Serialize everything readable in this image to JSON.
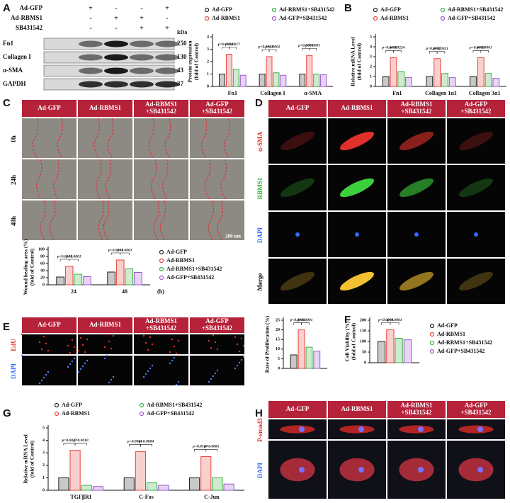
{
  "figure": {
    "letters": [
      "A",
      "B",
      "C",
      "D",
      "E",
      "F",
      "G",
      "H"
    ],
    "blot": {
      "conditions": [
        {
          "name": "Ad-GFP",
          "signs": [
            "+",
            "-",
            "-",
            "+"
          ]
        },
        {
          "name": "Ad-RBMS1",
          "signs": [
            "-",
            "+",
            "+",
            "-"
          ]
        },
        {
          "name": "SB431542",
          "signs": [
            "-",
            "-",
            "+",
            "+"
          ]
        }
      ],
      "unit": "kDa",
      "bands": [
        {
          "name": "Fn1",
          "kda": 250
        },
        {
          "name": "Collagen I",
          "kda": 130
        },
        {
          "name": "α-SMA",
          "kda": 43
        },
        {
          "name": "GAPDH",
          "kda": 37
        }
      ]
    },
    "headers": [
      [
        "Ad-GFP"
      ],
      [
        "Ad-RBMS1"
      ],
      [
        "Ad-RBMS1",
        "+SB431542"
      ],
      [
        "Ad-GFP",
        "+SB431542"
      ]
    ],
    "C": {
      "rows": [
        "0h",
        "24h",
        "48h"
      ],
      "scale": "200 um"
    },
    "D": {
      "rows": [
        "α-SMA",
        "RBMS1",
        "DAPI",
        "Merge"
      ]
    },
    "E": {
      "rows": [
        "EdU",
        "DAPI"
      ]
    },
    "H": {
      "rows": [
        "P-smad3",
        "DAPI"
      ]
    }
  },
  "chart_data": [
    {
      "type": "bar",
      "ylabel": [
        "Protein expression",
        "(fold of Control)"
      ],
      "categories": [
        "Fn1",
        "Collagen I",
        "α-SMA"
      ],
      "series": [
        {
          "name": "Ad-GFP",
          "color": "#222222",
          "values": [
            1,
            1,
            1
          ]
        },
        {
          "name": "Ad-RBMS1",
          "color": "#e8453c",
          "values": [
            2.6,
            2.4,
            2.5
          ]
        },
        {
          "name": "Ad-RBMS1+SB431542",
          "color": "#3cb043",
          "values": [
            1.4,
            1.1,
            1.0
          ]
        },
        {
          "name": "Ad-GFP+SB431542",
          "color": "#9b59d0",
          "values": [
            0.9,
            0.9,
            0.95
          ]
        }
      ],
      "ylim": [
        0,
        4
      ],
      "yticks": [
        0,
        1,
        2,
        3,
        4
      ],
      "annotations": [
        [
          "p=0.0004",
          "p=0.0017"
        ],
        [
          "p<0.0001",
          "p=0.0002"
        ],
        [
          "p<0.0001",
          "p<0.0001"
        ]
      ]
    },
    {
      "type": "bar",
      "ylabel": [
        "Relative mRNA Level",
        "(fold of Control)"
      ],
      "categories": [
        "Fn1",
        "Collagen 1α1",
        "Collagen 3α1"
      ],
      "series": [
        {
          "name": "Ad-GFP",
          "color": "#222222",
          "values": [
            1,
            1,
            1
          ]
        },
        {
          "name": "Ad-RBMS1",
          "color": "#e8453c",
          "values": [
            2.9,
            2.8,
            2.9
          ]
        },
        {
          "name": "Ad-RBMS1+SB431542",
          "color": "#3cb043",
          "values": [
            1.5,
            1.3,
            1.3
          ]
        },
        {
          "name": "Ad-GFP+SB431542",
          "color": "#9b59d0",
          "values": [
            0.9,
            0.9,
            0.8
          ]
        }
      ],
      "ylim": [
        0,
        5
      ],
      "yticks": [
        0,
        1,
        2,
        3,
        4,
        5
      ],
      "annotations": [
        [
          "p=0.0088",
          "p=0.0224"
        ],
        [
          "p=0.0007",
          "p=0.0021"
        ],
        [
          "p=0.0003",
          "p<0.0001"
        ]
      ]
    },
    {
      "type": "bar",
      "ylabel": [
        "Wound healing area (%)",
        "(fold of Control)"
      ],
      "categories": [
        "24",
        "48"
      ],
      "xlabel": "(h)",
      "series": [
        {
          "name": "Ad-GFP",
          "color": "#222222",
          "values": [
            22,
            36
          ]
        },
        {
          "name": "Ad-RBMS1",
          "color": "#e8453c",
          "values": [
            52,
            70
          ]
        },
        {
          "name": "Ad-RBMS1+SB431542",
          "color": "#3cb043",
          "values": [
            30,
            45
          ]
        },
        {
          "name": "Ad-GFP+SB431542",
          "color": "#9b59d0",
          "values": [
            23,
            35
          ]
        }
      ],
      "ylim": [
        0,
        100
      ],
      "yticks": [
        0,
        20,
        40,
        60,
        80,
        100
      ],
      "annotations": [
        [
          "p<0.0001",
          "p<0.0001"
        ],
        [
          "p<0.0001",
          "p<0.0001"
        ]
      ]
    },
    {
      "type": "bar",
      "ylabel": [
        "Rate of Proliferation (%)"
      ],
      "categories": [
        null
      ],
      "series": [
        {
          "color": "#222222",
          "values": [
            7
          ]
        },
        {
          "color": "#e8453c",
          "values": [
            20
          ]
        },
        {
          "color": "#3cb043",
          "values": [
            11
          ]
        },
        {
          "color": "#9b59d0",
          "values": [
            9
          ]
        }
      ],
      "ylim": [
        0,
        25
      ],
      "yticks": [
        0,
        5,
        10,
        15,
        20,
        25
      ],
      "annotations": [
        [
          "p<0.0001",
          "p<0.0001"
        ]
      ]
    },
    {
      "type": "bar",
      "ylabel": [
        "Cell Viability (%)",
        "(fold of Control)"
      ],
      "categories": [
        null
      ],
      "series": [
        {
          "name": "Ad-GFP",
          "color": "#222222",
          "values": [
            100
          ]
        },
        {
          "name": "Ad-RBMS1",
          "color": "#e8453c",
          "values": [
            155
          ]
        },
        {
          "name": "Ad-RBMS1+SB431542",
          "color": "#3cb043",
          "values": [
            115
          ]
        },
        {
          "name": "Ad-GFP+SB431542",
          "color": "#9b59d0",
          "values": [
            108
          ]
        }
      ],
      "ylim": [
        0,
        200
      ],
      "yticks": [
        0,
        50,
        100,
        150,
        200
      ],
      "annotations": [
        [
          "p<0.0001",
          "p<0.0001"
        ]
      ]
    },
    {
      "type": "bar",
      "ylabel": [
        "Relative mRNA Level",
        "(fold of Control)"
      ],
      "categories": [
        "TGFβRI",
        "C-Fos",
        "C-Jun"
      ],
      "series": [
        {
          "name": "Ad-GFP",
          "color": "#222222",
          "values": [
            1,
            1,
            1
          ]
        },
        {
          "name": "Ad-RBMS1",
          "color": "#e8453c",
          "values": [
            3.2,
            3.1,
            2.7
          ]
        },
        {
          "name": "Ad-RBMS1+SB431542",
          "color": "#3cb043",
          "values": [
            0.4,
            0.6,
            1.0
          ]
        },
        {
          "name": "Ad-GFP+SB431542",
          "color": "#9b59d0",
          "values": [
            0.3,
            0.4,
            0.5
          ]
        }
      ],
      "ylim": [
        0,
        5
      ],
      "yticks": [
        0,
        1,
        2,
        3,
        4,
        5
      ],
      "annotations": [
        [
          "p=0.0027",
          "p=0.0010"
        ],
        [
          "p=0.0001",
          "p=0.0004"
        ],
        [
          "p=0.0167",
          "p=0.0085"
        ]
      ]
    }
  ]
}
